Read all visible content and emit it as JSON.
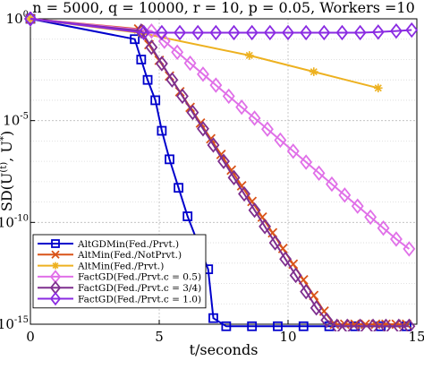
{
  "chart_data": {
    "type": "line",
    "title": "n = 5000, q = 10000, r = 10, p = 0.05, Workers =10",
    "xlabel": "t/seconds",
    "ylabel": "SD(U(t), U*)",
    "ylabel_parts": {
      "base": "SD(U",
      "sup1": "(t)",
      "mid": ", U",
      "sup2": "*",
      "end": ")"
    },
    "xscale": "linear",
    "yscale": "log",
    "xlim": [
      0,
      15
    ],
    "ylim_exponents": [
      -15,
      0
    ],
    "grid": true,
    "legend_position": "bottom-left",
    "x_ticks": [
      0,
      5,
      10,
      15
    ],
    "x_tick_labels": [
      "0",
      "5",
      "10",
      "15"
    ],
    "y_tick_exponents": [
      0,
      -5,
      -10,
      -15
    ],
    "y_tick_labels": [
      {
        "base": "10",
        "exp": "0"
      },
      {
        "base": "10",
        "exp": "-5"
      },
      {
        "base": "10",
        "exp": "-10"
      },
      {
        "base": "10",
        "exp": "-15"
      }
    ],
    "series": [
      {
        "name": "AltGDMin(Fed./Prvt.)",
        "color": "#0000cc",
        "marker": "square",
        "x": [
          0,
          4.05,
          4.3,
          4.55,
          4.85,
          5.1,
          5.4,
          5.75,
          6.1,
          6.5,
          6.9,
          7.1,
          7.6,
          8.6,
          9.6,
          10.6,
          11.6,
          12.6,
          13.6,
          14.6
        ],
        "log10_y": [
          0,
          -1.0,
          -2.0,
          -3.0,
          -4.0,
          -5.5,
          -6.9,
          -8.3,
          -9.7,
          -11.0,
          -12.3,
          -14.7,
          -15.1,
          -15.1,
          -15.1,
          -15.1,
          -15.1,
          -15.1,
          -15.1,
          -15.1
        ]
      },
      {
        "name": "AltMin(Fed./NotPrvt.)",
        "color": "#d95319",
        "marker": "x",
        "x": [
          0,
          4.2,
          4.6,
          5.0,
          5.4,
          5.8,
          6.2,
          6.6,
          7.0,
          7.4,
          7.8,
          8.2,
          8.6,
          9.0,
          9.4,
          9.8,
          10.2,
          10.6,
          11.0,
          11.4,
          11.8,
          12.2,
          12.6,
          13.0,
          13.4,
          13.8,
          14.2,
          14.6
        ],
        "log10_y": [
          0,
          -0.5,
          -1.27,
          -2.04,
          -2.81,
          -3.58,
          -4.35,
          -5.12,
          -5.89,
          -6.66,
          -7.43,
          -8.2,
          -8.97,
          -9.74,
          -10.51,
          -11.28,
          -12.05,
          -12.82,
          -13.59,
          -14.36,
          -15.0,
          -15.0,
          -15.0,
          -15.0,
          -15.0,
          -15.0,
          -15.0,
          -15.0
        ]
      },
      {
        "name": "AltMin(Fed./Prvt.)",
        "color": "#edb120",
        "marker": "asterisk",
        "x": [
          0,
          4.3,
          8.5,
          11.0,
          13.5
        ],
        "log10_y": [
          0,
          -0.7,
          -1.8,
          -2.6,
          -3.4
        ]
      },
      {
        "name": "FactGD(Fed./Prvt.c = 0.5)",
        "color": "#e070e8",
        "marker": "diamond",
        "x": [
          0,
          4.7,
          5.2,
          5.7,
          6.2,
          6.7,
          7.2,
          7.7,
          8.2,
          8.7,
          9.2,
          9.7,
          10.2,
          10.7,
          11.2,
          11.7,
          12.2,
          12.7,
          13.2,
          13.7,
          14.2,
          14.7
        ],
        "log10_y": [
          0,
          -0.6,
          -1.1,
          -1.64,
          -2.18,
          -2.72,
          -3.26,
          -3.8,
          -4.34,
          -4.88,
          -5.42,
          -5.96,
          -6.5,
          -7.04,
          -7.58,
          -8.12,
          -8.66,
          -9.2,
          -9.74,
          -10.28,
          -10.82,
          -11.3
        ]
      },
      {
        "name": "FactGD(Fed./Prvt.c = 3/4)",
        "color": "#7e2f8e",
        "marker": "diamond",
        "x": [
          0,
          4.3,
          4.7,
          5.1,
          5.5,
          5.9,
          6.3,
          6.7,
          7.1,
          7.5,
          7.9,
          8.3,
          8.7,
          9.1,
          9.5,
          9.9,
          10.3,
          10.7,
          11.1,
          11.5,
          11.9,
          12.3,
          12.8,
          13.3,
          13.8,
          14.3,
          14.7
        ],
        "log10_y": [
          0,
          -0.6,
          -1.4,
          -2.2,
          -3.0,
          -3.8,
          -4.6,
          -5.4,
          -6.2,
          -7.0,
          -7.8,
          -8.6,
          -9.4,
          -10.2,
          -11.0,
          -11.8,
          -12.6,
          -13.4,
          -14.2,
          -14.8,
          -15.1,
          -15.1,
          -15.1,
          -15.1,
          -15.1,
          -15.1,
          -15.1
        ]
      },
      {
        "name": "FactGD(Fed./Prvt.c = 1.0)",
        "color": "#8a2be2",
        "marker": "diamond",
        "x": [
          0,
          4.4,
          5.1,
          5.8,
          6.5,
          7.2,
          7.9,
          8.6,
          9.3,
          10.0,
          10.7,
          11.4,
          12.1,
          12.8,
          13.5,
          14.2,
          14.8
        ],
        "log10_y": [
          0,
          -0.68,
          -0.68,
          -0.68,
          -0.68,
          -0.68,
          -0.68,
          -0.68,
          -0.68,
          -0.68,
          -0.68,
          -0.68,
          -0.68,
          -0.68,
          -0.65,
          -0.6,
          -0.55
        ]
      }
    ]
  }
}
